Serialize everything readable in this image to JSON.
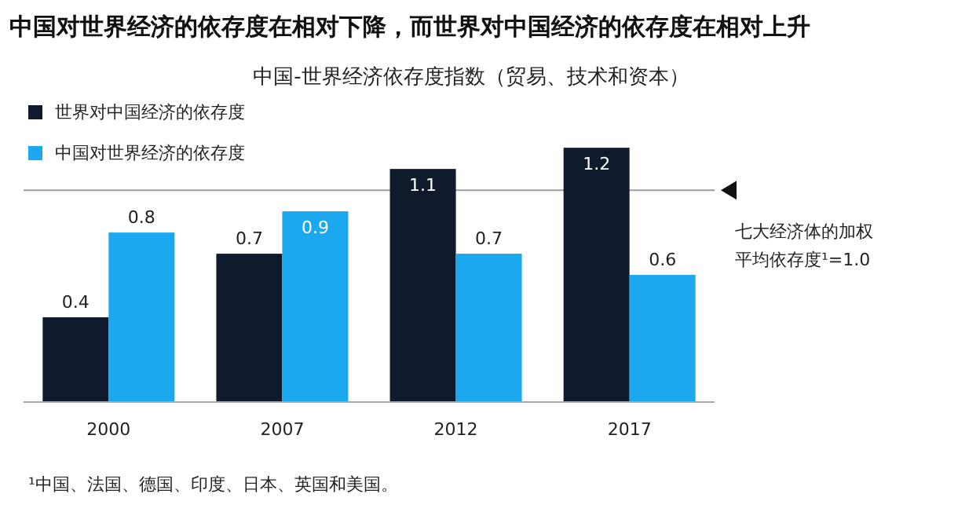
{
  "chart_data": {
    "type": "bar",
    "title": "中国对世界经济的依存度在相对下降，而世界对中国经济的依存度在相对上升",
    "subtitle": "中国-世界经济依存度指数（贸易、技术和资本）",
    "categories": [
      "2000",
      "2007",
      "2012",
      "2017"
    ],
    "series": [
      {
        "name": "世界对中国经济的依存度",
        "color": "#0f1a2d",
        "values": [
          0.4,
          0.7,
          1.1,
          1.2
        ]
      },
      {
        "name": "中国对世界经济的依存度",
        "color": "#1ba8ee",
        "values": [
          0.8,
          0.9,
          0.7,
          0.6
        ]
      }
    ],
    "data_labels": true,
    "legend": "top left",
    "ref_lines": [
      {
        "axis": "y",
        "value": 1.0,
        "label": "七大经济体的加权平均依存度¹=1.0",
        "color": "#9a9a9a"
      }
    ],
    "annotations": [
      "¹中国、法国、德国、印度、日本、英国和美国。"
    ]
  }
}
